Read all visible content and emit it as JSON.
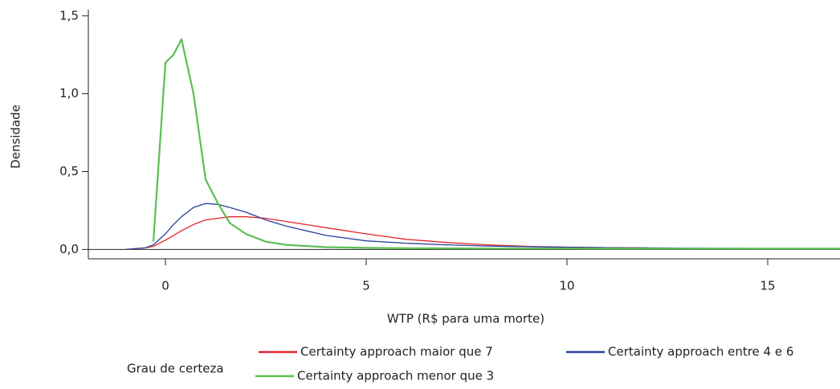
{
  "chart_data": {
    "type": "line",
    "x_label": "WTP (R$ para uma morte)",
    "y_label": "Densidade",
    "legend_title": "Grau de certeza",
    "x": [
      -1,
      -0.5,
      -0.3,
      0,
      0.2,
      0.4,
      0.7,
      1,
      1.3,
      1.6,
      2,
      2.5,
      3,
      4,
      5,
      6,
      7,
      8,
      9,
      10,
      11,
      12,
      13,
      14,
      15,
      16.8
    ],
    "series": [
      {
        "name": "Certainty approach maior que 7",
        "color": "#e3262b",
        "values": [
          0,
          0.01,
          0.02,
          0.06,
          0.09,
          0.12,
          0.16,
          0.19,
          0.2,
          0.21,
          0.21,
          0.2,
          0.18,
          0.14,
          0.1,
          0.065,
          0.045,
          0.03,
          0.02,
          0.015,
          0.012,
          0.01,
          null,
          null,
          null,
          null
        ]
      },
      {
        "name": "Certainty approach entre 4 e 6",
        "color": "#2a3f9c",
        "values": [
          0,
          0.01,
          0.03,
          0.1,
          0.16,
          0.21,
          0.27,
          0.295,
          0.29,
          0.27,
          0.24,
          0.19,
          0.15,
          0.09,
          0.055,
          0.04,
          0.03,
          0.022,
          0.018,
          0.014,
          0.011,
          0.01,
          0.008,
          0.007,
          0.006,
          null
        ]
      },
      {
        "name": "Certainty approach  menor que 3",
        "color": "#5bbf52",
        "values": [
          null,
          null,
          0.05,
          1.2,
          1.25,
          1.35,
          1.0,
          0.45,
          0.3,
          0.17,
          0.1,
          0.05,
          0.03,
          0.015,
          0.01,
          0.008,
          0.007,
          0.006,
          0.006,
          0.006,
          0.005,
          0.005,
          0.005,
          0.005,
          0.005,
          0.005
        ]
      }
    ],
    "xlim": [
      -1.92,
      16.8
    ],
    "xticks": [
      0,
      5,
      10,
      15
    ],
    "ylim": [
      -0.06,
      1.54
    ],
    "yticks": [
      {
        "value": 0,
        "label": "0,0"
      },
      {
        "value": 0.5,
        "label": "0,5"
      },
      {
        "value": 1,
        "label": "1,0"
      },
      {
        "value": 1.5,
        "label": "1,5"
      }
    ]
  }
}
